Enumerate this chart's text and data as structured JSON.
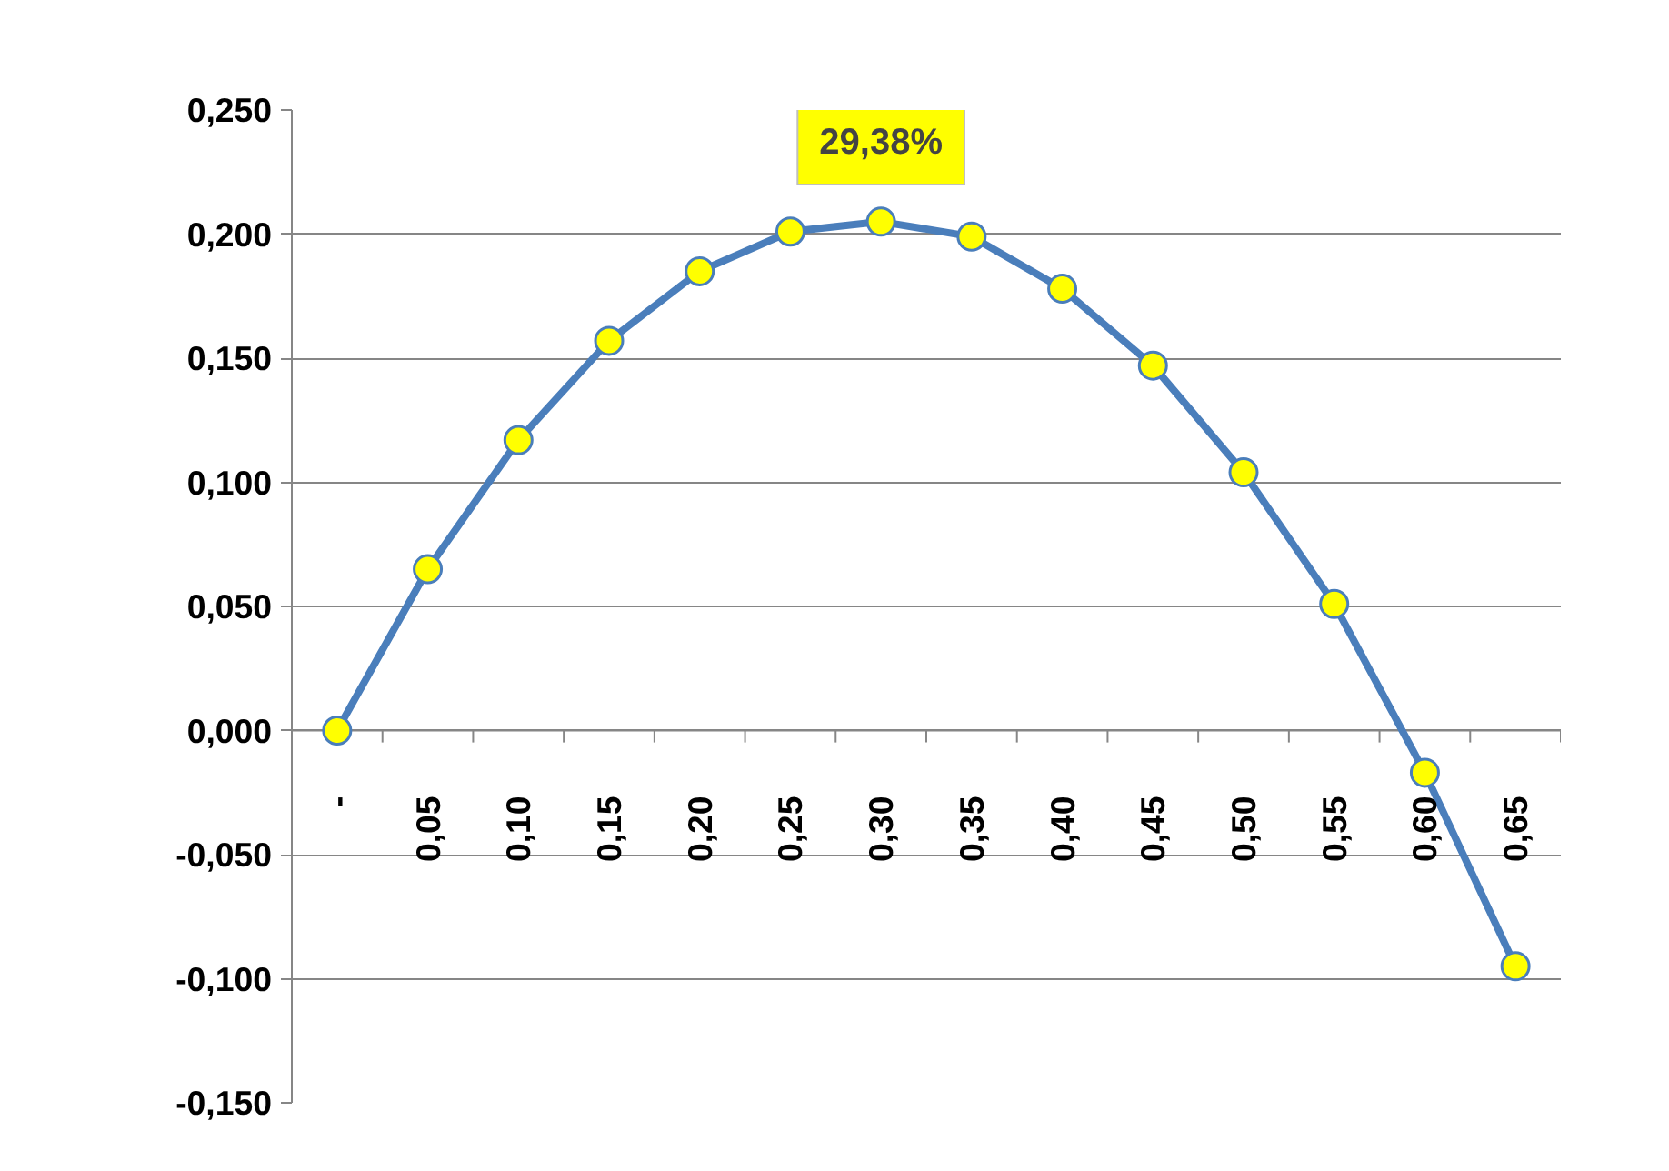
{
  "chart_data": {
    "type": "line",
    "categories": [
      "-",
      "0,05",
      "0,10",
      "0,15",
      "0,20",
      "0,25",
      "0,30",
      "0,35",
      "0,40",
      "0,45",
      "0,50",
      "0,55",
      "0,60",
      "0,65"
    ],
    "series": [
      {
        "color": "#4a7ebb",
        "values": [
          0.0,
          0.065,
          0.117,
          0.157,
          0.185,
          0.201,
          0.205,
          0.199,
          0.178,
          0.147,
          0.104,
          0.051,
          -0.017,
          -0.095
        ]
      }
    ],
    "ylim": [
      -0.15,
      0.25
    ],
    "yticks": [
      {
        "value": -0.15,
        "label": "-0,150"
      },
      {
        "value": -0.1,
        "label": "-0,100"
      },
      {
        "value": -0.05,
        "label": "-0,050"
      },
      {
        "value": 0,
        "label": "0,000"
      },
      {
        "value": 0.05,
        "label": "0,050"
      },
      {
        "value": 0.1,
        "label": "0,100"
      },
      {
        "value": 0.15,
        "label": "0,150"
      },
      {
        "value": 0.2,
        "label": "0,200"
      },
      {
        "value": 0.25,
        "label": "0,250"
      }
    ],
    "annotations": [
      "29,38%"
    ],
    "marker": "circle",
    "line_style": "solid",
    "grid": "y"
  }
}
